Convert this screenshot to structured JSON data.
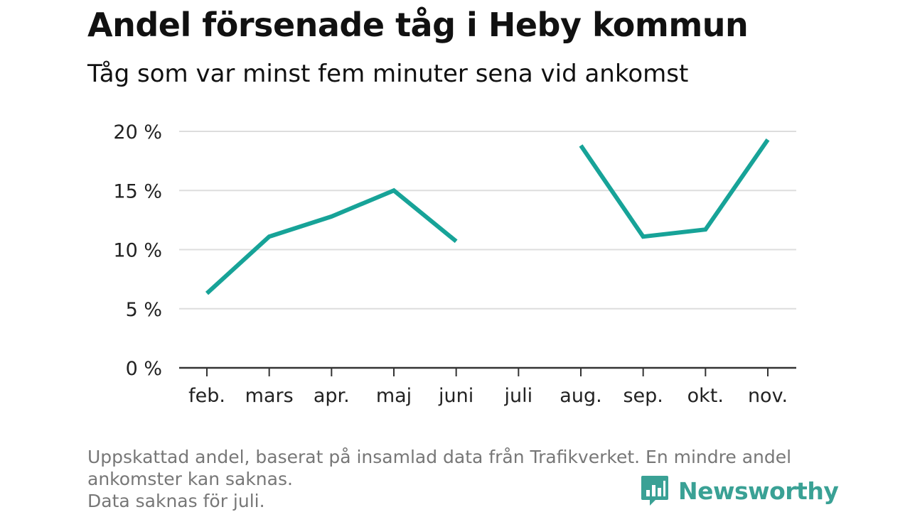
{
  "title": "Andel försenade tåg i Heby kommun",
  "subtitle": "Tåg som var minst fem minuter sena vid ankomst",
  "footnote": {
    "line1": "Uppskattad andel, baserat på insamlad data från Trafikverket. En mindre andel",
    "line2": "ankomster kan saknas.",
    "line3": "Data saknas för juli."
  },
  "logo": {
    "text": "Newsworthy",
    "icon": "bar-chart-speech-bubble-icon",
    "color": "#3aa195"
  },
  "chart_data": {
    "type": "line",
    "categories": [
      "feb.",
      "mars",
      "apr.",
      "maj",
      "juni",
      "juli",
      "aug.",
      "sep.",
      "okt.",
      "nov."
    ],
    "series": [
      {
        "values": [
          6.3,
          11.1,
          12.8,
          15.0,
          10.7,
          null,
          18.8,
          11.1,
          11.7,
          19.3
        ],
        "color": "#17a398"
      }
    ],
    "yticks": [
      0,
      5,
      10,
      15,
      20
    ],
    "ytick_labels": [
      "0 %",
      "5 %",
      "10 %",
      "15 %",
      "20 %"
    ],
    "ylim": [
      0,
      20
    ],
    "grid": true,
    "xlabel": "",
    "ylabel": ""
  }
}
